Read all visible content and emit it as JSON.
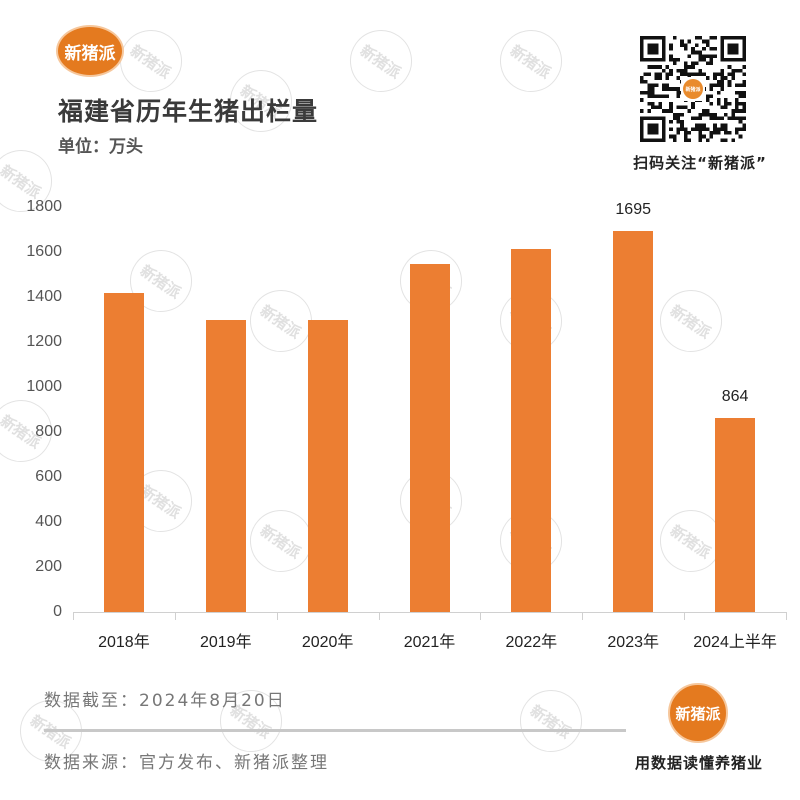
{
  "brand": {
    "name": "新猪派",
    "color": "#e47a1f",
    "watermark_text": "新猪派"
  },
  "header": {
    "title": "福建省历年生猪出栏量",
    "unit": "单位：万头"
  },
  "qr": {
    "caption": "扫码关注“新猪派”",
    "center_text": "新猪派"
  },
  "chart_data": {
    "type": "bar",
    "title": "福建省历年生猪出栏量",
    "xlabel": "",
    "ylabel": "万头",
    "categories": [
      "2018年",
      "2019年",
      "2020年",
      "2021年",
      "2022年",
      "2023年",
      "2024上半年"
    ],
    "values": [
      1418,
      1298,
      1298,
      1547,
      1613,
      1695,
      864
    ],
    "data_labels": [
      "",
      "",
      "",
      "",
      "",
      "1695",
      "864"
    ],
    "yticks": [
      "0",
      "200",
      "400",
      "600",
      "800",
      "1000",
      "1200",
      "1400",
      "1600",
      "1800"
    ],
    "ylim": [
      0,
      1800
    ],
    "grid": false,
    "legend": "none",
    "bar_color": "#ec7e32"
  },
  "footer": {
    "date": "数据截至：2024年8月20日",
    "source": "数据来源：官方发布、新猪派整理",
    "slogan": "用数据读懂养猪业"
  }
}
